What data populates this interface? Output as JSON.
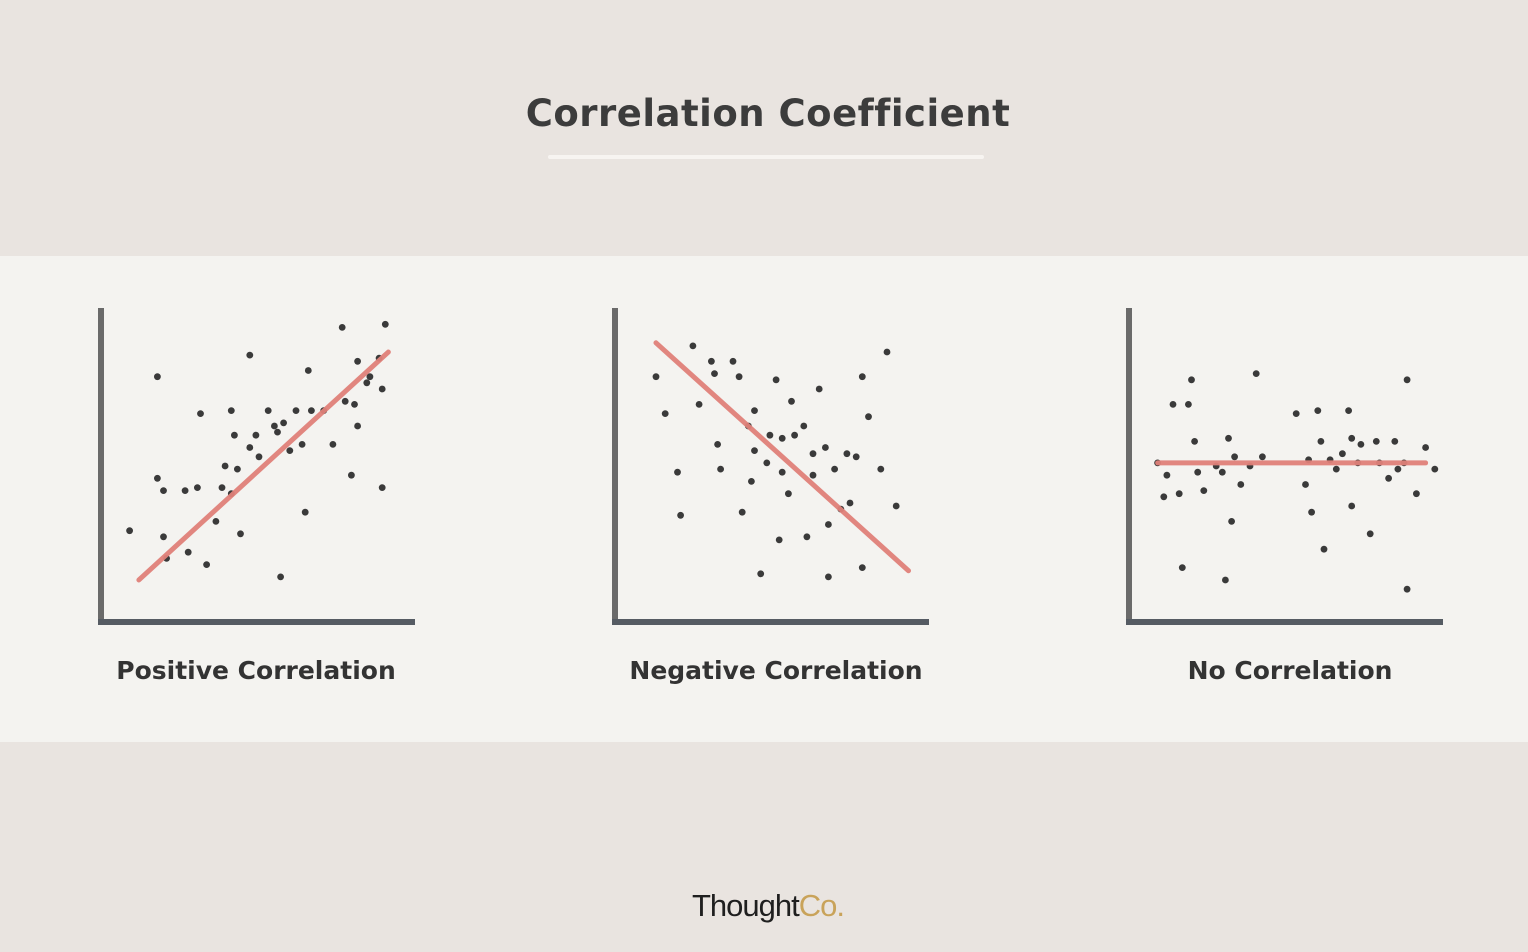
{
  "page_title": "Correlation Coefficient",
  "brand": {
    "main": "Thought",
    "accent": "Co."
  },
  "colors": {
    "axis_left": "#6a6a6a",
    "axis_bottom": "#555b63",
    "point": "#3a3a3a",
    "trend": "#e0817a"
  },
  "chart_data": [
    {
      "type": "scatter",
      "title": "Positive Correlation",
      "trend": "positive",
      "xlim": [
        0,
        100
      ],
      "ylim": [
        0,
        100
      ],
      "trendline": [
        [
          11,
          13
        ],
        [
          92,
          87
        ]
      ],
      "points": [
        [
          8,
          29
        ],
        [
          17,
          79
        ],
        [
          17,
          46
        ],
        [
          19,
          42
        ],
        [
          19,
          27
        ],
        [
          20,
          20
        ],
        [
          26,
          42
        ],
        [
          27,
          22
        ],
        [
          30,
          43
        ],
        [
          31,
          67
        ],
        [
          33,
          18
        ],
        [
          36,
          32
        ],
        [
          38,
          43
        ],
        [
          39,
          50
        ],
        [
          41,
          41
        ],
        [
          41,
          68
        ],
        [
          42,
          60
        ],
        [
          43,
          49
        ],
        [
          44,
          28
        ],
        [
          47,
          86
        ],
        [
          47,
          56
        ],
        [
          49,
          60
        ],
        [
          50,
          53
        ],
        [
          53,
          68
        ],
        [
          55,
          63
        ],
        [
          56,
          61
        ],
        [
          57,
          14
        ],
        [
          58,
          64
        ],
        [
          60,
          55
        ],
        [
          62,
          68
        ],
        [
          64,
          57
        ],
        [
          65,
          35
        ],
        [
          66,
          81
        ],
        [
          67,
          68
        ],
        [
          71,
          68
        ],
        [
          74,
          57
        ],
        [
          77,
          95
        ],
        [
          78,
          71
        ],
        [
          80,
          47
        ],
        [
          81,
          70
        ],
        [
          82,
          84
        ],
        [
          82,
          63
        ],
        [
          85,
          77
        ],
        [
          86,
          79
        ],
        [
          89,
          85
        ],
        [
          90,
          75
        ],
        [
          90,
          43
        ],
        [
          91,
          96
        ]
      ]
    },
    {
      "type": "scatter",
      "title": "Negative Correlation",
      "trend": "negative",
      "xlim": [
        0,
        100
      ],
      "ylim": [
        0,
        100
      ],
      "trendline": [
        [
          12,
          90
        ],
        [
          94,
          16
        ]
      ],
      "points": [
        [
          12,
          79
        ],
        [
          15,
          67
        ],
        [
          19,
          48
        ],
        [
          20,
          34
        ],
        [
          24,
          89
        ],
        [
          26,
          70
        ],
        [
          30,
          84
        ],
        [
          31,
          80
        ],
        [
          32,
          57
        ],
        [
          33,
          49
        ],
        [
          37,
          84
        ],
        [
          39,
          79
        ],
        [
          40,
          35
        ],
        [
          42,
          63
        ],
        [
          43,
          45
        ],
        [
          44,
          55
        ],
        [
          44,
          68
        ],
        [
          46,
          15
        ],
        [
          48,
          51
        ],
        [
          49,
          60
        ],
        [
          51,
          78
        ],
        [
          52,
          26
        ],
        [
          53,
          48
        ],
        [
          53,
          59
        ],
        [
          55,
          41
        ],
        [
          56,
          71
        ],
        [
          57,
          60
        ],
        [
          60,
          63
        ],
        [
          61,
          27
        ],
        [
          63,
          54
        ],
        [
          63,
          47
        ],
        [
          65,
          75
        ],
        [
          67,
          56
        ],
        [
          68,
          31
        ],
        [
          68,
          14
        ],
        [
          70,
          49
        ],
        [
          72,
          36
        ],
        [
          74,
          54
        ],
        [
          75,
          38
        ],
        [
          77,
          53
        ],
        [
          79,
          79
        ],
        [
          79,
          17
        ],
        [
          81,
          66
        ],
        [
          85,
          49
        ],
        [
          87,
          87
        ],
        [
          90,
          37
        ]
      ]
    },
    {
      "type": "scatter",
      "title": "No Correlation",
      "trend": "none",
      "xlim": [
        0,
        100
      ],
      "ylim": [
        0,
        100
      ],
      "trendline": [
        [
          8,
          51
        ],
        [
          95,
          51
        ]
      ],
      "points": [
        [
          8,
          51
        ],
        [
          10,
          40
        ],
        [
          11,
          47
        ],
        [
          13,
          70
        ],
        [
          15,
          41
        ],
        [
          16,
          17
        ],
        [
          18,
          70
        ],
        [
          19,
          78
        ],
        [
          20,
          58
        ],
        [
          21,
          48
        ],
        [
          23,
          42
        ],
        [
          27,
          50
        ],
        [
          29,
          48
        ],
        [
          30,
          13
        ],
        [
          31,
          59
        ],
        [
          32,
          32
        ],
        [
          33,
          53
        ],
        [
          35,
          44
        ],
        [
          38,
          50
        ],
        [
          40,
          80
        ],
        [
          42,
          53
        ],
        [
          53,
          67
        ],
        [
          56,
          44
        ],
        [
          57,
          52
        ],
        [
          58,
          35
        ],
        [
          60,
          68
        ],
        [
          61,
          58
        ],
        [
          62,
          23
        ],
        [
          64,
          52
        ],
        [
          66,
          49
        ],
        [
          68,
          54
        ],
        [
          70,
          68
        ],
        [
          71,
          59
        ],
        [
          71,
          37
        ],
        [
          73,
          51
        ],
        [
          74,
          57
        ],
        [
          77,
          28
        ],
        [
          79,
          58
        ],
        [
          80,
          51
        ],
        [
          83,
          46
        ],
        [
          85,
          58
        ],
        [
          86,
          49
        ],
        [
          88,
          51
        ],
        [
          89,
          10
        ],
        [
          89,
          78
        ],
        [
          92,
          41
        ],
        [
          95,
          56
        ],
        [
          98,
          49
        ]
      ]
    }
  ]
}
